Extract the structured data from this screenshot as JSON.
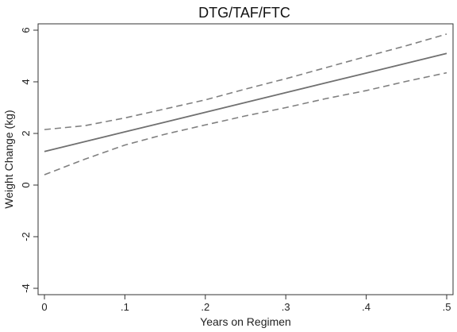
{
  "chart_data": {
    "type": "line",
    "title": "DTG/TAF/FTC",
    "xlabel": "Years on Regimen",
    "ylabel": "Weight Change (kg)",
    "xlim": [
      0,
      0.5
    ],
    "ylim": [
      -4,
      6
    ],
    "x_ticks": [
      0,
      0.1,
      0.2,
      0.3,
      0.4,
      0.5
    ],
    "x_tick_labels": [
      "0",
      ".1",
      ".2",
      ".3",
      ".4",
      ".5"
    ],
    "y_ticks": [
      -4,
      -2,
      0,
      2,
      4,
      6
    ],
    "y_tick_labels": [
      "-4",
      "-2",
      "0",
      "2",
      "4",
      "6"
    ],
    "grid": false,
    "legend": "none",
    "series": [
      {
        "role": "fit",
        "style": "solid",
        "color": "#707070",
        "x": [
          0,
          0.05,
          0.1,
          0.15,
          0.2,
          0.25,
          0.3,
          0.35,
          0.4,
          0.45,
          0.5
        ],
        "values": [
          1.3,
          1.68,
          2.06,
          2.44,
          2.82,
          3.2,
          3.58,
          3.96,
          4.34,
          4.72,
          5.1
        ]
      },
      {
        "role": "upper-ci",
        "style": "dashed",
        "color": "#808080",
        "x": [
          0,
          0.05,
          0.1,
          0.15,
          0.2,
          0.25,
          0.3,
          0.35,
          0.4,
          0.45,
          0.5
        ],
        "values": [
          2.15,
          2.3,
          2.6,
          2.95,
          3.3,
          3.72,
          4.12,
          4.55,
          4.98,
          5.4,
          5.85
        ]
      },
      {
        "role": "lower-ci",
        "style": "dashed",
        "color": "#808080",
        "x": [
          0,
          0.05,
          0.1,
          0.15,
          0.2,
          0.25,
          0.3,
          0.35,
          0.4,
          0.45,
          0.5
        ],
        "values": [
          0.4,
          1.0,
          1.55,
          1.97,
          2.33,
          2.68,
          3.0,
          3.35,
          3.66,
          4.02,
          4.35
        ]
      }
    ]
  }
}
